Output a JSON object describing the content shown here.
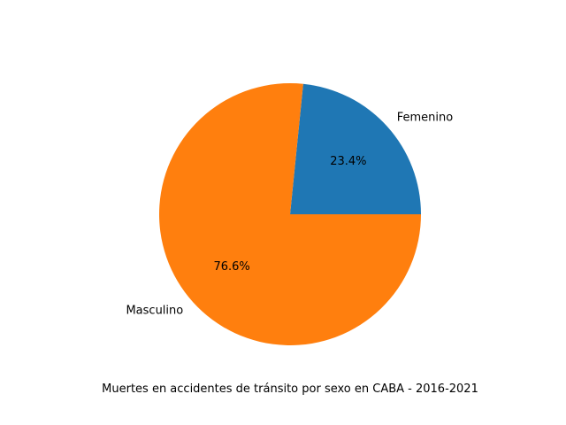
{
  "chart_data": {
    "type": "pie",
    "title": "",
    "caption": "Muertes en accidentes de tránsito por sexo en CABA - 2016-2021",
    "slices": [
      {
        "label": "Femenino",
        "value": 23.4,
        "pct_label": "23.4%",
        "color": "#1f77b4"
      },
      {
        "label": "Masculino",
        "value": 76.6,
        "pct_label": "76.6%",
        "color": "#ff7f0e"
      }
    ],
    "start_angle_deg": 0,
    "direction": "counterclockwise",
    "legend": "none"
  }
}
